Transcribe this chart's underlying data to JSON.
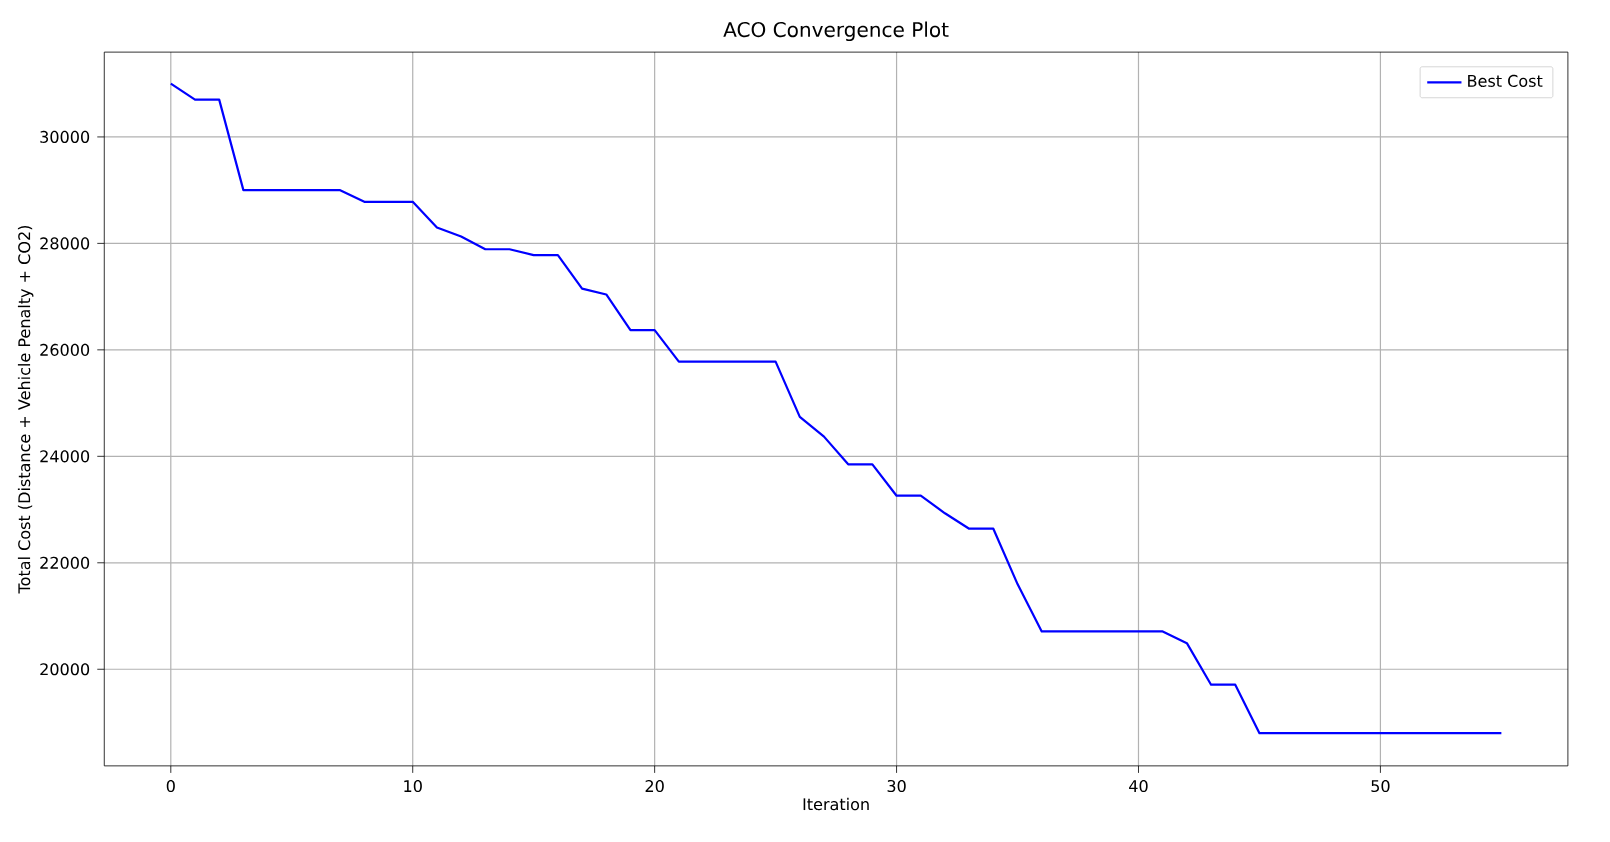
{
  "chart_data": {
    "type": "line",
    "title": "ACO Convergence Plot",
    "xlabel": "Iteration",
    "ylabel": "Total Cost (Distance + Vehicle Penalty + CO2)",
    "x": [
      0,
      1,
      2,
      3,
      4,
      5,
      6,
      7,
      8,
      9,
      10,
      11,
      12,
      13,
      14,
      15,
      16,
      17,
      18,
      19,
      20,
      21,
      22,
      23,
      24,
      25,
      26,
      27,
      28,
      29,
      30,
      31,
      32,
      33,
      34,
      35,
      36,
      37,
      38,
      39,
      40,
      41,
      42,
      43,
      44,
      45,
      46,
      47,
      48,
      49,
      50,
      51,
      52,
      53,
      54,
      55
    ],
    "series": [
      {
        "name": "Best Cost",
        "color": "#0000ff",
        "values": [
          31000,
          30700,
          30700,
          29000,
          29000,
          29000,
          29000,
          29000,
          28780,
          28780,
          28780,
          28300,
          28130,
          27890,
          27890,
          27780,
          27780,
          27150,
          27040,
          26370,
          26370,
          25780,
          25780,
          25780,
          25780,
          25780,
          24740,
          24370,
          23850,
          23850,
          23260,
          23260,
          22930,
          22640,
          22640,
          21600,
          20710,
          20710,
          20710,
          20710,
          20710,
          20710,
          20490,
          19710,
          19710,
          18800,
          18800,
          18800,
          18800,
          18800,
          18800,
          18800,
          18800,
          18800,
          18800,
          18800
        ]
      }
    ],
    "xlim": [
      -2.75,
      57.75
    ],
    "ylim": [
      18185,
      31593
    ],
    "xticks": [
      0,
      10,
      20,
      30,
      40,
      50
    ],
    "yticks": [
      20000,
      22000,
      24000,
      26000,
      28000,
      30000
    ],
    "grid": true,
    "legend": "top right",
    "marker": "none",
    "line_style": "solid"
  }
}
